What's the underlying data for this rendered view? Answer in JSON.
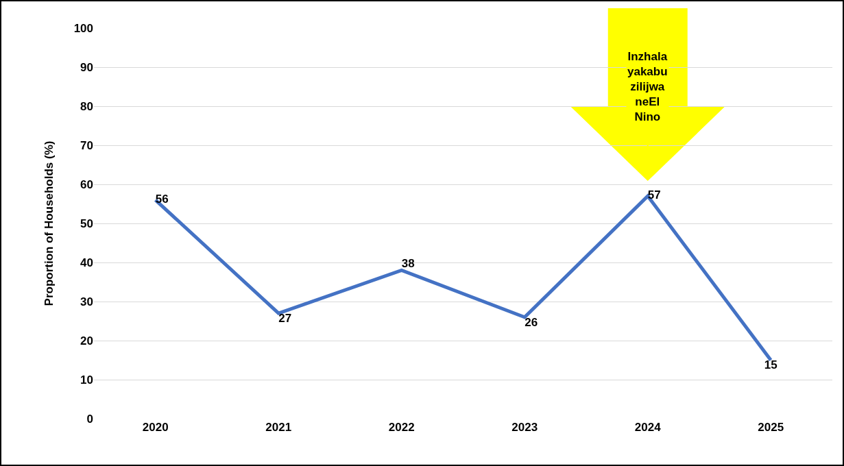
{
  "chart_data": {
    "type": "line",
    "ylabel": "Proportion of Households (%)",
    "categories": [
      "2020",
      "2021",
      "2022",
      "2023",
      "2024",
      "2025"
    ],
    "values": [
      56,
      27,
      38,
      26,
      57,
      15
    ],
    "color": "#4472c4",
    "ylim": [
      0,
      100
    ],
    "yticks": [
      0,
      10,
      20,
      30,
      40,
      50,
      60,
      70,
      80,
      90,
      100
    ],
    "grid": "y",
    "data_labels": true,
    "marker": "none",
    "annotations": [
      {
        "text": "Inzhala\nyakabu\nzilijwa\nneEl\nNino",
        "x": "2024",
        "y": 57
      }
    ]
  }
}
